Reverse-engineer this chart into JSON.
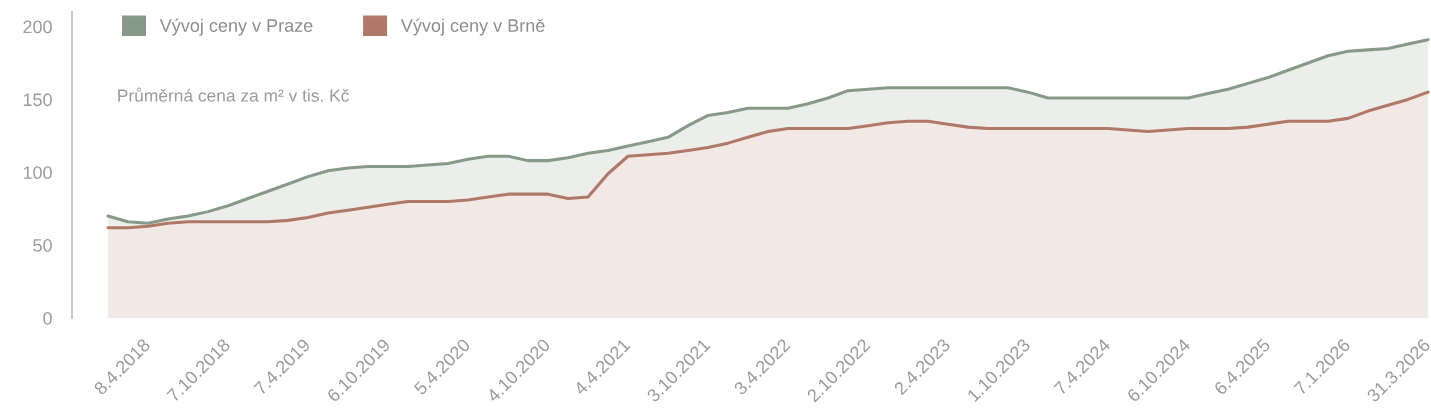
{
  "chart_data": {
    "type": "area",
    "categories": [
      null,
      null,
      "8.4.2018",
      null,
      null,
      null,
      "7.10.2018",
      null,
      null,
      null,
      "7.4.2019",
      null,
      null,
      null,
      "6.10.2019",
      null,
      null,
      null,
      "5.4.2020",
      null,
      null,
      null,
      "4.10.2020",
      null,
      null,
      null,
      "4.4.2021",
      null,
      null,
      null,
      "3.10.2021",
      null,
      null,
      null,
      "3.4.2022",
      null,
      null,
      null,
      "2.10.2022",
      null,
      null,
      null,
      "2.4.2023",
      null,
      null,
      null,
      "1.10.2023",
      null,
      null,
      null,
      "7.4.2024",
      null,
      null,
      null,
      "6.10.2024",
      null,
      null,
      null,
      "6.4.2025",
      null,
      null,
      null,
      "7.1.2026",
      null,
      null,
      null,
      "31.3.2026"
    ],
    "series": [
      {
        "name": "Vývoj ceny v Praze",
        "color": "#879a87",
        "values": [
          70,
          66,
          65,
          68,
          70,
          73,
          77,
          82,
          87,
          92,
          97,
          101,
          103,
          104,
          104,
          104,
          105,
          106,
          109,
          111,
          111,
          108,
          108,
          110,
          113,
          115,
          118,
          121,
          124,
          132,
          139,
          141,
          144,
          144,
          144,
          147,
          151,
          156,
          157,
          158,
          158,
          158,
          158,
          158,
          158,
          158,
          155,
          151,
          151,
          151,
          151,
          151,
          151,
          151,
          151,
          154,
          157,
          161,
          165,
          170,
          175,
          180,
          183,
          184,
          185,
          188,
          191
        ]
      },
      {
        "name": "Vývoj ceny v Brně",
        "color": "#b07866",
        "values": [
          62,
          62,
          63,
          65,
          66,
          66,
          66,
          66,
          66,
          67,
          69,
          72,
          74,
          76,
          78,
          80,
          80,
          80,
          81,
          83,
          85,
          85,
          85,
          82,
          83,
          99,
          111,
          112,
          113,
          115,
          117,
          120,
          124,
          128,
          130,
          130,
          130,
          130,
          132,
          134,
          135,
          135,
          133,
          131,
          130,
          130,
          130,
          130,
          130,
          130,
          130,
          129,
          128,
          129,
          130,
          130,
          130,
          131,
          133,
          135,
          135,
          135,
          137,
          142,
          146,
          150,
          155
        ]
      }
    ],
    "ylim": [
      0,
      210
    ],
    "yticks": [
      0,
      50,
      100,
      150,
      200
    ],
    "legend": "top left",
    "annotations": [
      "Průměrná cena za m² v tis. Kč"
    ]
  }
}
